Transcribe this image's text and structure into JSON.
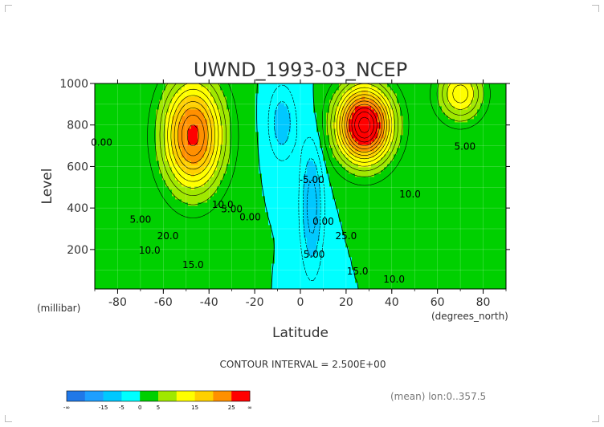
{
  "chart_data": {
    "type": "heatmap",
    "subtype": "filled-contour",
    "title": "UWND_1993-03_NCEP",
    "xlabel": "Latitude",
    "ylabel": "Level",
    "x_units": "(degrees_north)",
    "y_units": "(millibar)",
    "xlim": [
      -90,
      90
    ],
    "ylim": [
      1000,
      10
    ],
    "y_reversed": true,
    "grid": true,
    "x_ticks": [
      -80,
      -60,
      -40,
      -20,
      0,
      20,
      40,
      60,
      80
    ],
    "x_tick_labels": [
      "-80",
      "-60",
      "-40",
      "-20",
      "0",
      "20",
      "40",
      "60",
      "80"
    ],
    "y_ticks": [
      200,
      400,
      600,
      800,
      1000
    ],
    "y_tick_labels": [
      "200",
      "400",
      "600",
      "800",
      "1000"
    ],
    "contour_interval_text": "CONTOUR INTERVAL = 2.500E+00",
    "footnote": "(mean) lon:0..357.5",
    "contour_labels": [
      {
        "text": "15.0",
        "lat": -47,
        "lev": 110
      },
      {
        "text": "20.0",
        "lat": -58,
        "lev": 250
      },
      {
        "text": "10.0",
        "lat": -66,
        "lev": 180
      },
      {
        "text": "5.00",
        "lat": -70,
        "lev": 330
      },
      {
        "text": "10.0",
        "lat": -34,
        "lev": 400
      },
      {
        "text": "5.00",
        "lat": -30,
        "lev": 380
      },
      {
        "text": "0.00",
        "lat": -22,
        "lev": 340
      },
      {
        "text": "0.00",
        "lat": -87,
        "lev": 700
      },
      {
        "text": "5.00",
        "lat": 6,
        "lev": 160
      },
      {
        "text": "0.00",
        "lat": 10,
        "lev": 320
      },
      {
        "text": "-5.00",
        "lat": 5,
        "lev": 520
      },
      {
        "text": "15.0",
        "lat": 25,
        "lev": 80
      },
      {
        "text": "10.0",
        "lat": 41,
        "lev": 40
      },
      {
        "text": "25.0",
        "lat": 20,
        "lev": 250
      },
      {
        "text": "10.0",
        "lat": 48,
        "lev": 450
      },
      {
        "text": "5.00",
        "lat": 72,
        "lev": 680
      }
    ],
    "colorbar": {
      "boundaries": [
        -1000000000.0,
        -15,
        -10,
        -5,
        0,
        5,
        10,
        15,
        20,
        25,
        1000000000.0
      ],
      "tick_labels": [
        "-∞",
        "-15",
        "-5",
        "0",
        "5",
        "15",
        "25",
        "∞"
      ],
      "colors": [
        "#2078e8",
        "#1e9fff",
        "#00c8ff",
        "#00ffff",
        "#00d000",
        "#a0e800",
        "#ffff00",
        "#ffd000",
        "#ff9000",
        "#ff0000"
      ]
    },
    "features": [
      {
        "kind": "jet",
        "lat": -47,
        "lev": 260,
        "peak": 26,
        "wlat": 13,
        "wlev": 260
      },
      {
        "kind": "jet",
        "lat": 28,
        "lev": 210,
        "peak": 34,
        "wlat": 12,
        "wlev": 180
      },
      {
        "kind": "jet",
        "lat": 70,
        "lev": 60,
        "peak": 14,
        "wlat": 10,
        "wlev": 130
      },
      {
        "kind": "easterly",
        "lat": 5,
        "lev": 600,
        "peak": -9,
        "wlat": 5,
        "wlev": 320
      },
      {
        "kind": "easterly",
        "lat": -8,
        "lev": 200,
        "peak": -7,
        "wlat": 6,
        "wlev": 180
      }
    ]
  }
}
